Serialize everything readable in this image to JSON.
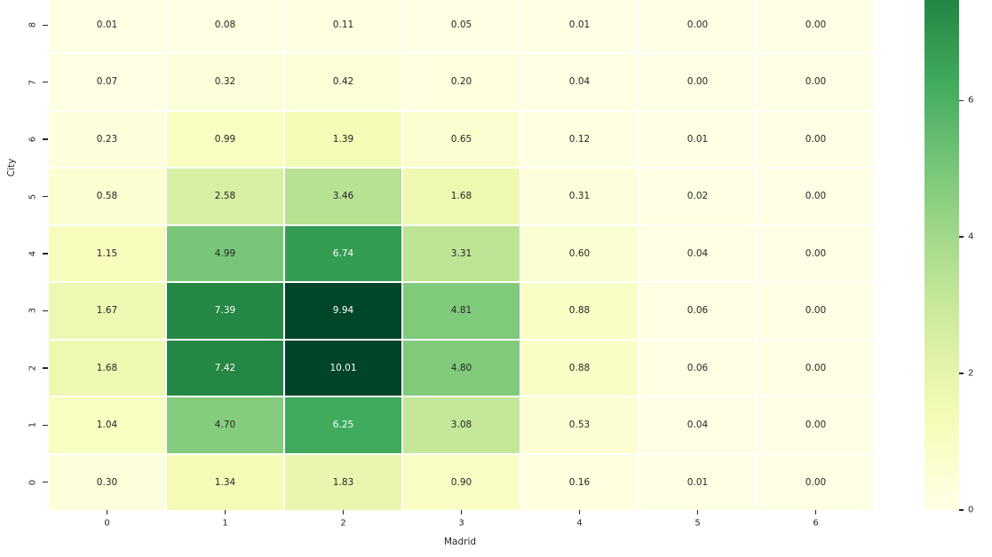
{
  "chart_data": {
    "type": "heatmap",
    "title": "",
    "xlabel": "Madrid",
    "ylabel": "City",
    "x_ticklabels": [
      "0",
      "1",
      "2",
      "3",
      "4",
      "5",
      "6"
    ],
    "y_ticklabels": [
      "8",
      "7",
      "6",
      "5",
      "4",
      "3",
      "2",
      "1",
      "0"
    ],
    "matrix": [
      [
        0.01,
        0.08,
        0.11,
        0.05,
        0.01,
        0.0,
        0.0
      ],
      [
        0.07,
        0.32,
        0.42,
        0.2,
        0.04,
        0.0,
        0.0
      ],
      [
        0.23,
        0.99,
        1.39,
        0.65,
        0.12,
        0.01,
        0.0
      ],
      [
        0.58,
        2.58,
        3.46,
        1.68,
        0.31,
        0.02,
        0.0
      ],
      [
        1.15,
        4.99,
        6.74,
        3.31,
        0.6,
        0.04,
        0.0
      ],
      [
        1.67,
        7.39,
        9.94,
        4.81,
        0.88,
        0.06,
        0.0
      ],
      [
        1.68,
        7.42,
        10.01,
        4.8,
        0.88,
        0.06,
        0.0
      ],
      [
        1.04,
        4.7,
        6.25,
        3.08,
        0.53,
        0.04,
        0.0
      ],
      [
        0.3,
        1.34,
        1.83,
        0.9,
        0.16,
        0.01,
        0.0
      ]
    ],
    "annot_decimals": 2,
    "colormap": "YlGn",
    "colormap_stops": [
      [
        0.0,
        "#ffffe5"
      ],
      [
        0.125,
        "#f7fcb9"
      ],
      [
        0.25,
        "#d9f0a3"
      ],
      [
        0.375,
        "#addd8e"
      ],
      [
        0.5,
        "#78c679"
      ],
      [
        0.625,
        "#41ab5d"
      ],
      [
        0.75,
        "#238443"
      ],
      [
        0.875,
        "#006837"
      ],
      [
        1.0,
        "#004529"
      ]
    ],
    "vmin": 0,
    "vmax": 10.01,
    "grid_line_color": "#ffffff",
    "annotation_text_dark": "#262626",
    "annotation_text_light": "#ffffff",
    "legend_position": "none",
    "colorbar": {
      "position": "right",
      "orientation": "vertical",
      "visible_tick_labels": [
        "6",
        "4",
        "2",
        "0"
      ],
      "visible_top_value": 7.47
    }
  }
}
